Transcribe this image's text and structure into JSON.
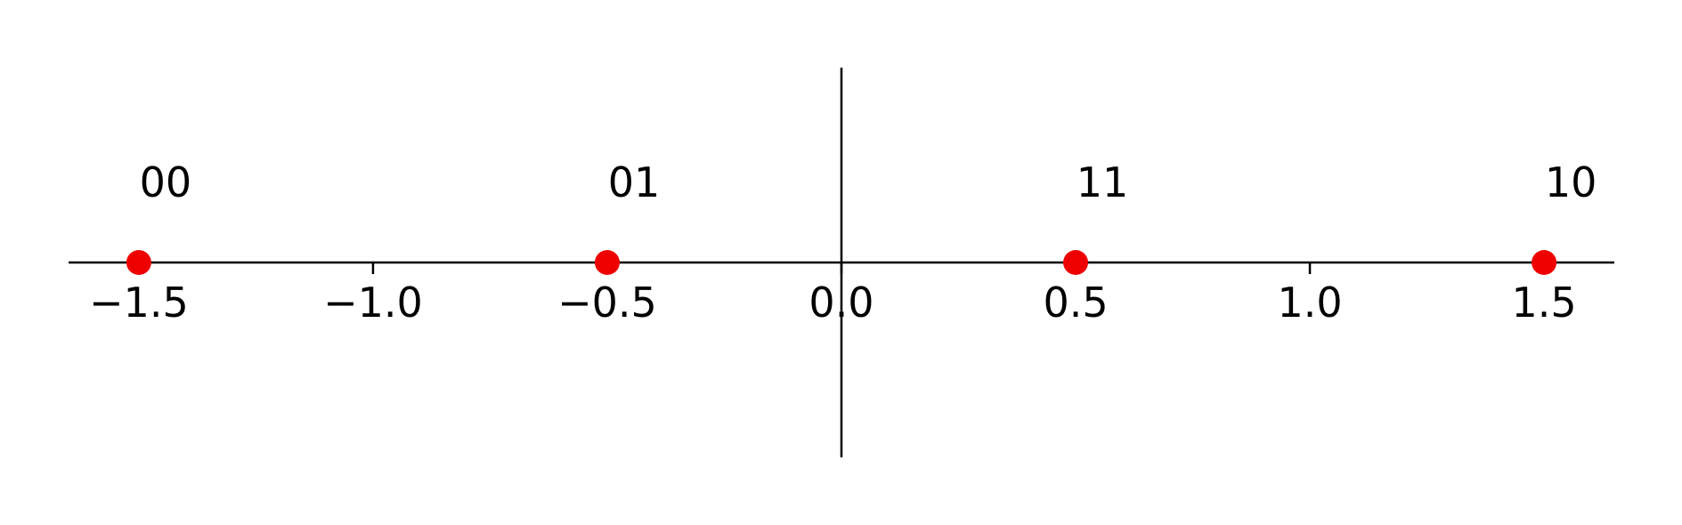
{
  "chart_data": {
    "type": "scatter",
    "title": "",
    "xlabel": "",
    "ylabel": "",
    "xlim": [
      -1.65,
      1.65
    ],
    "ylim": [
      -0.42,
      0.42
    ],
    "grid": false,
    "x_ticks": [
      -1.5,
      -1.0,
      -0.5,
      0.0,
      0.5,
      1.0,
      1.5
    ],
    "x_tick_labels": [
      "−1.5",
      "−1.0",
      "−0.5",
      "0.0",
      "0.5",
      "1.0",
      "1.5"
    ],
    "points": [
      {
        "x": -1.5,
        "y": 0,
        "label": "00"
      },
      {
        "x": -0.5,
        "y": 0,
        "label": "01"
      },
      {
        "x": 0.5,
        "y": 0,
        "label": "11"
      },
      {
        "x": 1.5,
        "y": 0,
        "label": "10"
      }
    ],
    "marker_color": "#ee0000",
    "axis_color": "#000000"
  }
}
